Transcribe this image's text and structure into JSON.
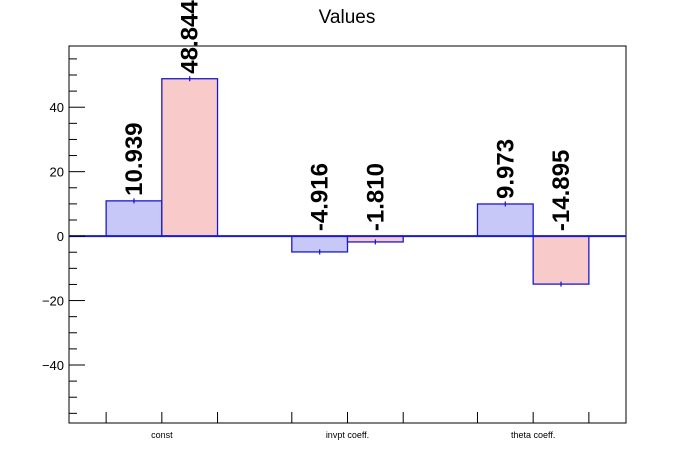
{
  "chart_data": {
    "type": "bar",
    "title": "Values",
    "categories": [
      "const",
      "invpt coeff.",
      "theta coeff."
    ],
    "series": [
      {
        "values": [
          10.939,
          -4.916,
          9.973
        ],
        "labels": [
          "10.939",
          "-4.916",
          "9.973"
        ],
        "color": "#c8c8f8"
      },
      {
        "values": [
          48.844,
          -1.81,
          -14.895
        ],
        "labels": [
          "48.844",
          "-1.810",
          "-14.895"
        ],
        "color": "#f9caca"
      }
    ],
    "ylim": [
      -58,
      59
    ],
    "yticks": [
      -40,
      -20,
      0,
      20,
      40
    ],
    "ytick_labels": [
      "−40",
      "−20",
      "0",
      "20",
      "40"
    ],
    "xlabel": "",
    "ylabel": "",
    "bar_outline_color": "#1a1ad0",
    "zero_line_color": "#1a1ad0",
    "grid": false,
    "legend": "none"
  }
}
